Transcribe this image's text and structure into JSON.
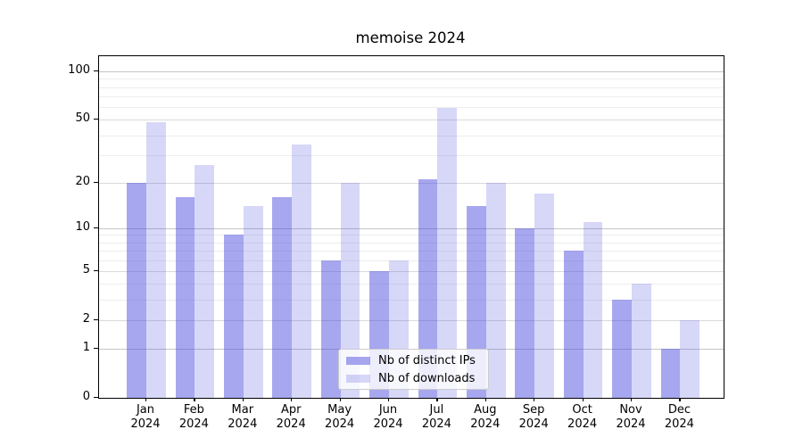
{
  "chart_data": {
    "type": "bar",
    "title": "memoise 2024",
    "categories": [
      "Jan",
      "Feb",
      "Mar",
      "Apr",
      "May",
      "Jun",
      "Jul",
      "Aug",
      "Sep",
      "Oct",
      "Nov",
      "Dec"
    ],
    "year_label": "2024",
    "series": [
      {
        "name": "Nb of distinct IPs",
        "color": "rgba(68,68,221,0.47)",
        "values": [
          20,
          16,
          9,
          16,
          6,
          5,
          21,
          14,
          10,
          7,
          3,
          1
        ]
      },
      {
        "name": "Nb of downloads",
        "color": "rgba(68,68,221,0.21)",
        "values": [
          48,
          26,
          14,
          35,
          20,
          6,
          59,
          20,
          17,
          11,
          4,
          2
        ]
      }
    ],
    "y_ticks": [
      0,
      1,
      2,
      5,
      10,
      20,
      50,
      100
    ],
    "y_major_ticks": [
      1,
      10,
      100
    ],
    "y_minor_gridlines": [
      3,
      4,
      6,
      7,
      8,
      9,
      30,
      40,
      60,
      70,
      80,
      90
    ],
    "scale": "log1p",
    "ylim": [
      0,
      126
    ],
    "xlabel": "",
    "ylabel": "",
    "grid": true,
    "legend_position": "lower center"
  },
  "colors": {
    "background": "#ffffff",
    "axis": "#000000",
    "grid_major": "#c6c6c6",
    "grid_labeled": "#dadada",
    "grid_minor": "#ededed",
    "legend_border": "#cccccc"
  }
}
